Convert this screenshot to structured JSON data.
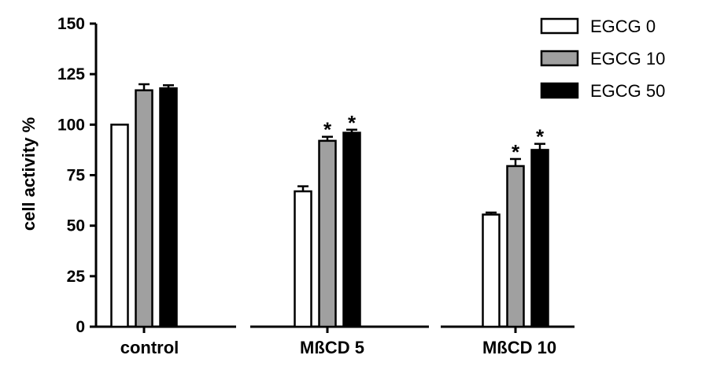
{
  "chart_data": {
    "type": "bar",
    "title": "",
    "xlabel": "",
    "ylabel": "cell activity %",
    "ylim": [
      0,
      150
    ],
    "yticks": [
      "0",
      "25",
      "50",
      "75",
      "100",
      "125",
      "150"
    ],
    "categories": [
      "control",
      "MßCD 5",
      "MßCD 10"
    ],
    "series": [
      {
        "name": "EGCG 0",
        "color": "#ffffff",
        "values": [
          100,
          67,
          55.5
        ],
        "errors": [
          0,
          2.5,
          1
        ]
      },
      {
        "name": "EGCG 10",
        "color": "#a0a0a0",
        "values": [
          117,
          92,
          79.5
        ],
        "errors": [
          3,
          2,
          3.5
        ]
      },
      {
        "name": "EGCG 50",
        "color": "#000000",
        "values": [
          118,
          96,
          87.5
        ],
        "errors": [
          1.5,
          1.5,
          3
        ]
      }
    ],
    "significance": [
      [
        false,
        false,
        false
      ],
      [
        false,
        true,
        true
      ],
      [
        false,
        true,
        true
      ]
    ],
    "significance_marker": "*",
    "legend_position": "top-right",
    "grid": false
  }
}
